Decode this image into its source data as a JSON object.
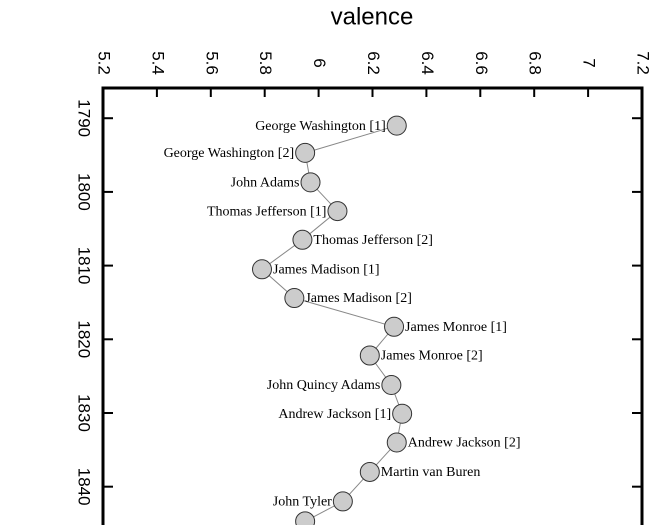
{
  "chart_data": {
    "type": "scatter",
    "title": "valence",
    "labels": [
      "George Washington [1]",
      "George Washington [2]",
      "John Adams",
      "Thomas Jefferson [1]",
      "Thomas Jefferson [2]",
      "James Madison [1]",
      "James Madison [2]",
      "James Monroe [1]",
      "James Monroe [2]",
      "John Quincy Adams",
      "Andrew Jackson [1]",
      "Andrew Jackson [2]",
      "Martin van Buren",
      "John Tyler",
      null
    ],
    "x": [
      6.29,
      5.95,
      5.97,
      6.07,
      5.94,
      5.79,
      5.91,
      6.28,
      6.19,
      6.27,
      6.31,
      6.29,
      6.19,
      6.09,
      5.95
    ],
    "values": [
      1791,
      1794.7,
      1798.7,
      1802.6,
      1806.5,
      1810.5,
      1814.4,
      1818.3,
      1822.2,
      1826.2,
      1830.1,
      1834,
      1838,
      1842,
      1844.7
    ],
    "xlim": [
      5.2,
      7.2
    ],
    "xticks": [
      5.2,
      5.4,
      5.6,
      5.8,
      6,
      6.2,
      6.4,
      6.6,
      6.8,
      7,
      7.2
    ],
    "ylim": [
      1785.9,
      1845.2
    ],
    "yticks": [
      1790,
      1800,
      1810,
      1820,
      1830,
      1840
    ],
    "color": "#cccccc",
    "line_color": "#888888"
  }
}
